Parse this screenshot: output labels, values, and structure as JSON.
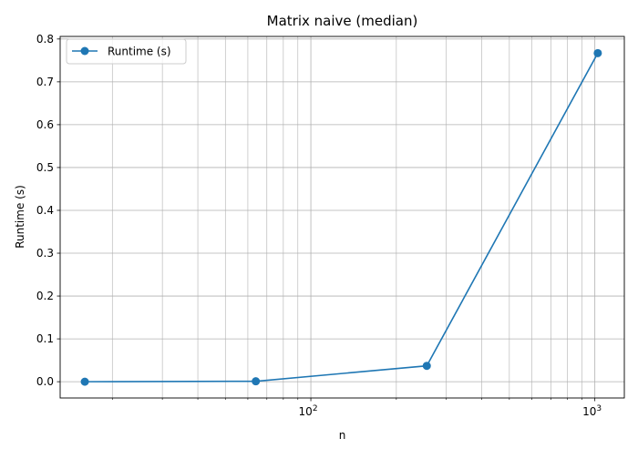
{
  "chart_data": {
    "type": "line",
    "title": "Matrix naive (median)",
    "xlabel": "n",
    "ylabel": "Runtime (s)",
    "xscale": "log",
    "xlim": [
      13.1,
      1270
    ],
    "ylim": [
      -0.038,
      0.806
    ],
    "x_ticks": [
      {
        "value": 100,
        "base": "10",
        "exp": "2"
      },
      {
        "value": 1000,
        "base": "10",
        "exp": "3"
      }
    ],
    "y_ticks": [
      "0.0",
      "0.1",
      "0.2",
      "0.3",
      "0.4",
      "0.5",
      "0.6",
      "0.7",
      "0.8"
    ],
    "grid": true,
    "grid_minor_x": true,
    "legend_position": "top-left",
    "series": [
      {
        "name": "Runtime (s)",
        "color": "#1f77b4",
        "marker": "circle",
        "x": [
          16,
          64,
          256,
          1024
        ],
        "y": [
          0.0,
          0.001,
          0.037,
          0.767
        ]
      }
    ]
  }
}
